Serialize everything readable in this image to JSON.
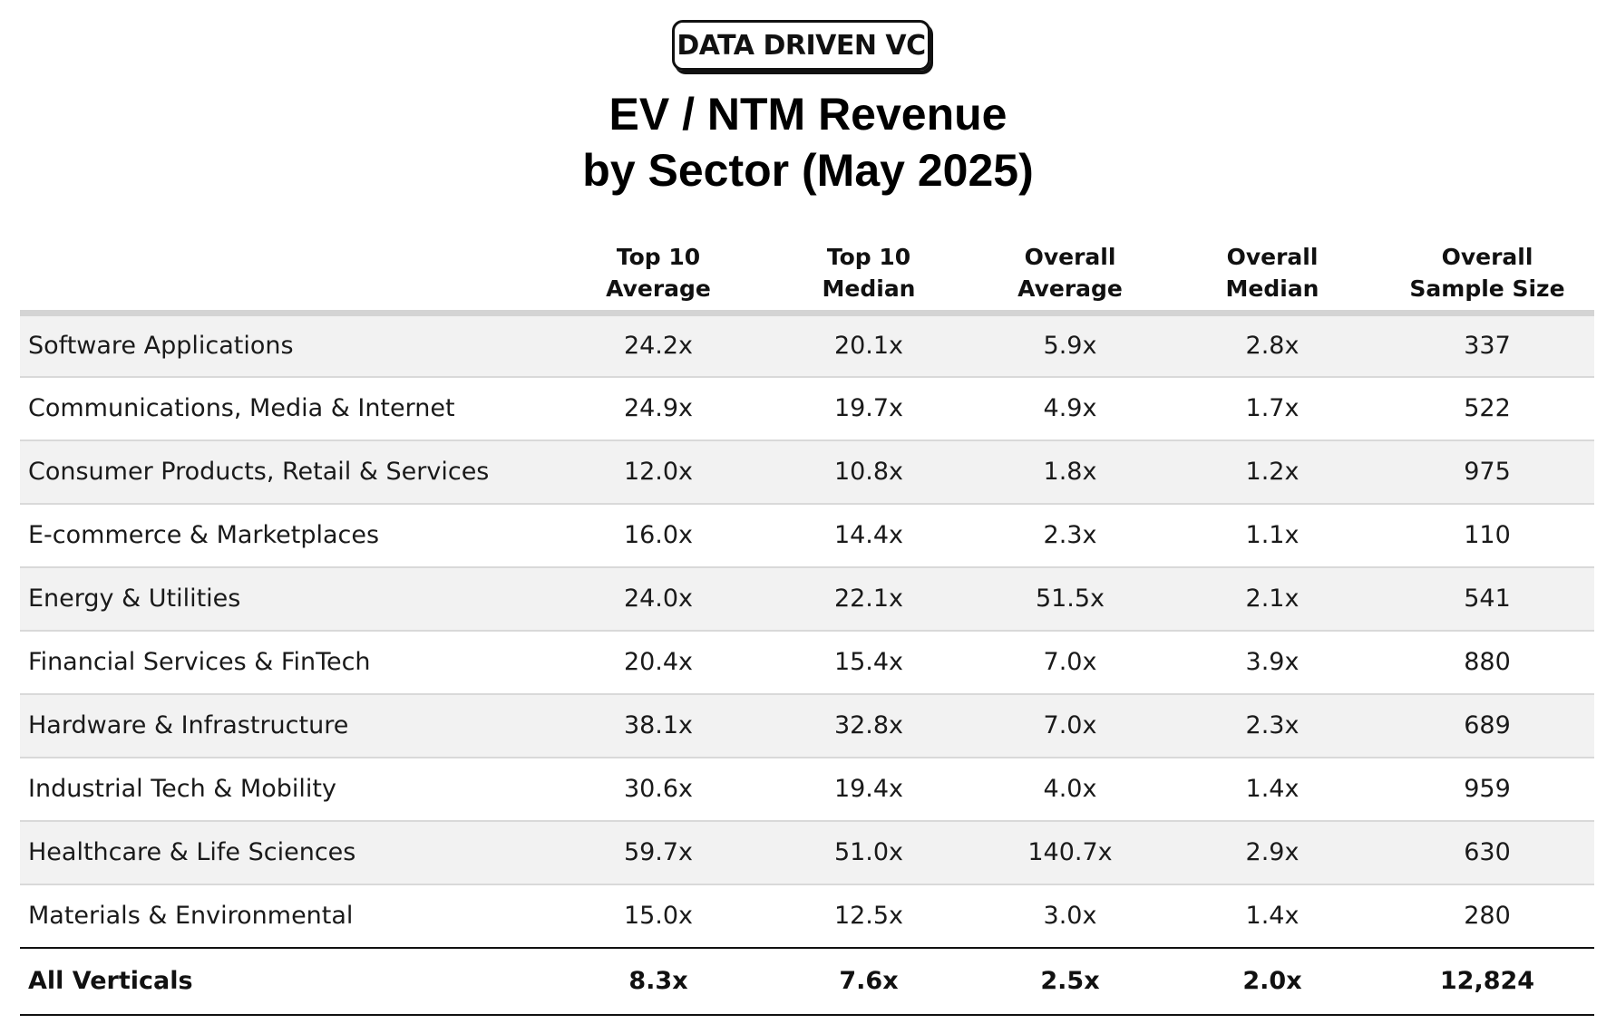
{
  "logo": "DATA DRIVEN VC",
  "chart_data": {
    "type": "table",
    "title_lines": [
      "EV / NTM Revenue",
      "by Sector (May 2025)"
    ],
    "columns": [
      "",
      "Top 10\nAverage",
      "Top 10\nMedian",
      "Overall Average",
      "Overall\nMedian",
      "Overall\nSample Size"
    ],
    "rows": [
      [
        "Software Applications",
        "24.2x",
        "20.1x",
        "5.9x",
        "2.8x",
        "337"
      ],
      [
        "Communications, Media & Internet",
        "24.9x",
        "19.7x",
        "4.9x",
        "1.7x",
        "522"
      ],
      [
        "Consumer Products, Retail & Services",
        "12.0x",
        "10.8x",
        "1.8x",
        "1.2x",
        "975"
      ],
      [
        "E-commerce & Marketplaces",
        "16.0x",
        "14.4x",
        "2.3x",
        "1.1x",
        "110"
      ],
      [
        "Energy & Utilities",
        "24.0x",
        "22.1x",
        "51.5x",
        "2.1x",
        "541"
      ],
      [
        "Financial Services & FinTech",
        "20.4x",
        "15.4x",
        "7.0x",
        "3.9x",
        "880"
      ],
      [
        "Hardware & Infrastructure",
        "38.1x",
        "32.8x",
        "7.0x",
        "2.3x",
        "689"
      ],
      [
        "Industrial Tech & Mobility",
        "30.6x",
        "19.4x",
        "4.0x",
        "1.4x",
        "959"
      ],
      [
        "Healthcare & Life Sciences",
        "59.7x",
        "51.0x",
        "140.7x",
        "2.9x",
        "630"
      ],
      [
        "Materials & Environmental",
        "15.0x",
        "12.5x",
        "3.0x",
        "1.4x",
        "280"
      ]
    ],
    "total": [
      "All Verticals",
      "8.3x",
      "7.6x",
      "2.5x",
      "2.0x",
      "12,824"
    ]
  }
}
